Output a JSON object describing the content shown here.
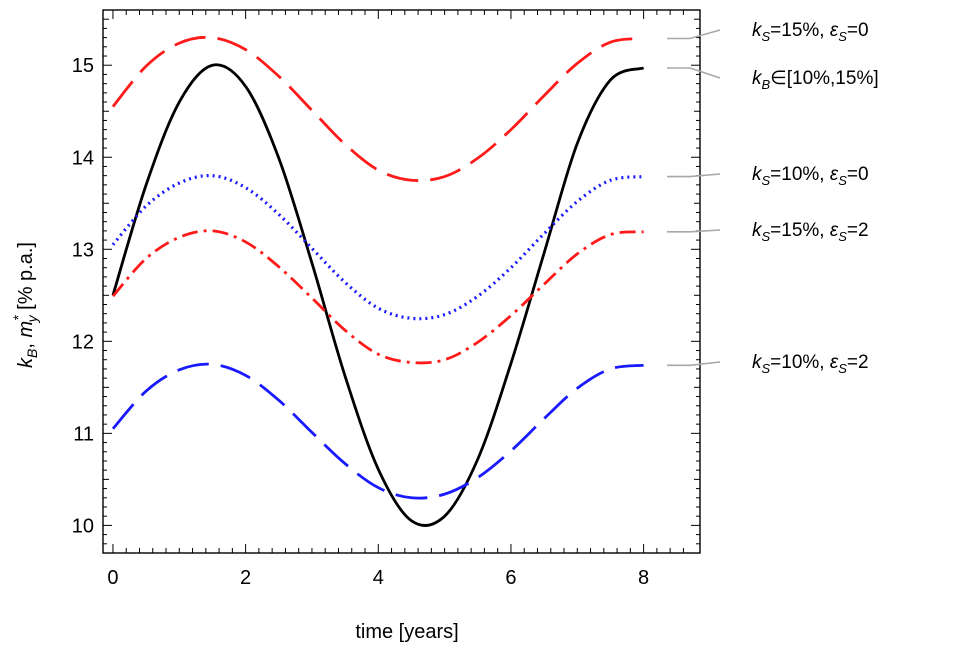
{
  "chart_data": {
    "type": "line",
    "xlabel": "time [years]",
    "ylabel": "k_B, m_y^* [% p.a.]",
    "xlim": [
      -0.15,
      8.85
    ],
    "ylim": [
      9.7,
      15.6
    ],
    "grid": false,
    "legend_placement": "right (leader-line labels)",
    "x_ticks": [
      0,
      2,
      4,
      6,
      8
    ],
    "y_ticks": [
      10,
      11,
      12,
      13,
      14,
      15
    ],
    "x": [
      0,
      0.5,
      1,
      1.5,
      2,
      2.5,
      3,
      3.5,
      4,
      4.5,
      5,
      5.5,
      6,
      6.5,
      7,
      7.5,
      8
    ],
    "series": [
      {
        "name": "k_S=15%, ε_S=0",
        "color": "#ff1a1a",
        "style": "long-dash",
        "values": [
          14.55,
          14.99,
          15.24,
          15.3,
          15.17,
          14.88,
          14.51,
          14.14,
          13.86,
          13.75,
          13.79,
          13.99,
          14.3,
          14.67,
          15.02,
          15.25,
          15.29
        ]
      },
      {
        "name": "k_B∈[10%,15%]",
        "color": "#000000",
        "style": "solid",
        "values": [
          12.5,
          13.7,
          14.6,
          15.0,
          14.77,
          13.99,
          12.85,
          11.62,
          10.61,
          10.05,
          10.1,
          10.72,
          11.76,
          12.96,
          14.15,
          14.84,
          14.97
        ]
      },
      {
        "name": "k_S=10%, ε_S=0",
        "color": "#1a1aff",
        "style": "dotted",
        "values": [
          13.05,
          13.47,
          13.72,
          13.8,
          13.67,
          13.38,
          13.01,
          12.64,
          12.36,
          12.25,
          12.29,
          12.49,
          12.8,
          13.17,
          13.52,
          13.75,
          13.79
        ]
      },
      {
        "name": "k_S=15%, ε_S=2",
        "color": "#ff1a1a",
        "style": "dash-dot",
        "values": [
          12.49,
          12.9,
          13.13,
          13.2,
          13.08,
          12.81,
          12.47,
          12.12,
          11.86,
          11.77,
          11.8,
          11.99,
          12.28,
          12.62,
          12.95,
          13.16,
          13.19
        ]
      },
      {
        "name": "k_S=10%, ε_S=2",
        "color": "#1a1aff",
        "style": "long-dash",
        "values": [
          11.05,
          11.46,
          11.69,
          11.75,
          11.63,
          11.36,
          11.01,
          10.67,
          10.41,
          10.3,
          10.34,
          10.52,
          10.81,
          11.16,
          11.49,
          11.7,
          11.74
        ]
      }
    ],
    "annotations": [
      {
        "main": "k",
        "sub": "S",
        "rest": "=15%, ",
        "sym": "ε",
        "sub2": "S",
        "rest2": "=0"
      },
      {
        "main": "k",
        "sub": "B",
        "rest": "∈[10%,15%]",
        "sym": "",
        "sub2": "",
        "rest2": ""
      },
      {
        "main": "k",
        "sub": "S",
        "rest": "=10%, ",
        "sym": "ε",
        "sub2": "S",
        "rest2": "=0"
      },
      {
        "main": "k",
        "sub": "S",
        "rest": "=15%, ",
        "sym": "ε",
        "sub2": "S",
        "rest2": "=2"
      },
      {
        "main": "k",
        "sub": "S",
        "rest": "=10%, ",
        "sym": "ε",
        "sub2": "S",
        "rest2": "=2"
      }
    ],
    "ylabel_parts": {
      "k": "k",
      "kB_sub": "B",
      "sep": ", ",
      "m": "m",
      "m_sub": "y",
      "m_sup": "*",
      "unit": " [% p.a.]"
    }
  }
}
